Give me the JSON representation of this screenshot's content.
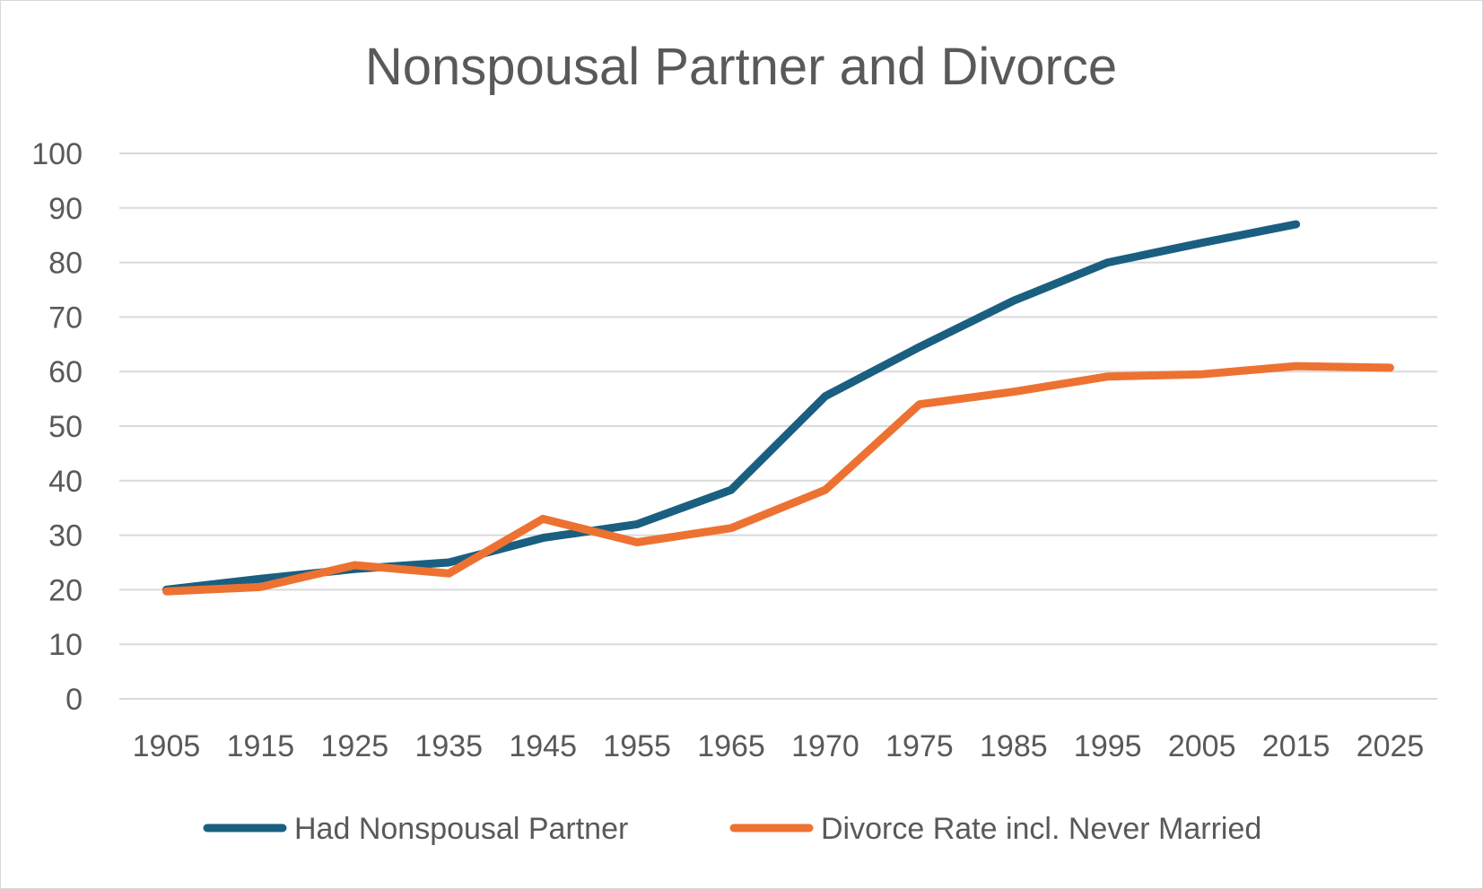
{
  "chart_data": {
    "type": "line",
    "title": "Nonspousal Partner and Divorce",
    "xlabel": "",
    "ylabel": "",
    "categories": [
      "1905",
      "1915",
      "1925",
      "1935",
      "1945",
      "1955",
      "1965",
      "1970",
      "1975",
      "1985",
      "1995",
      "2005",
      "2015",
      "2025"
    ],
    "y_ticks": [
      "0",
      "10",
      "20",
      "30",
      "40",
      "50",
      "60",
      "70",
      "80",
      "90",
      "100"
    ],
    "ylim": [
      0,
      100
    ],
    "grid": true,
    "legend_position": "bottom",
    "series": [
      {
        "name": "Had Nonspousal Partner",
        "color": "#1a5f80",
        "values": [
          20,
          22,
          23.8,
          25,
          29.5,
          32,
          38.3,
          55.5,
          64.5,
          73,
          80,
          83.6,
          87,
          null
        ]
      },
      {
        "name": "Divorce Rate incl. Never Married",
        "color": "#ed7232",
        "values": [
          19.7,
          20.5,
          24.5,
          23,
          33,
          28.7,
          31.3,
          38.3,
          54,
          56.3,
          59.1,
          59.5,
          61,
          60.7
        ]
      }
    ]
  }
}
